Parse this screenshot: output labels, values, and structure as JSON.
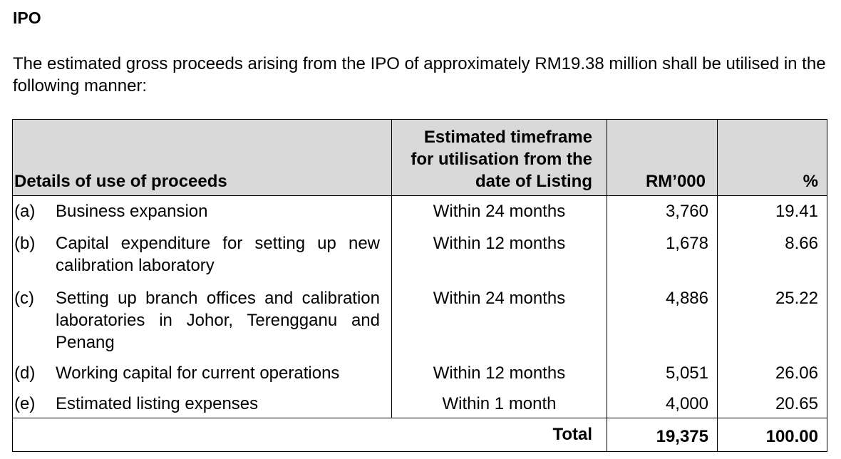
{
  "heading": "IPO",
  "intro": "The estimated gross proceeds arising from the IPO of approximately RM19.38 million shall be utilised in the following manner:",
  "table": {
    "header": [
      "Details of use of proceeds",
      "Estimated timeframe for utilisation from the date of Listing",
      "RM’000",
      "%"
    ],
    "rows": [
      [
        "(a)",
        "Business expansion",
        "Within 24 months",
        "3,760",
        "19.41"
      ],
      [
        "(b)",
        "Capital expenditure for setting up new calibration laboratory",
        "Within 12 months",
        "1,678",
        "8.66"
      ],
      [
        "(c)",
        "Setting up branch offices and calibration laboratories in Johor, Terengganu and Penang",
        "Within 24 months",
        "4,886",
        "25.22"
      ],
      [
        "(d)",
        "Working capital for current operations",
        "Within 12 months",
        "5,051",
        "26.06"
      ],
      [
        "(e)",
        "Estimated listing expenses",
        "Within 1 month",
        "4,000",
        "20.65"
      ]
    ],
    "total": [
      "Total",
      "19,375",
      "100.00"
    ]
  }
}
